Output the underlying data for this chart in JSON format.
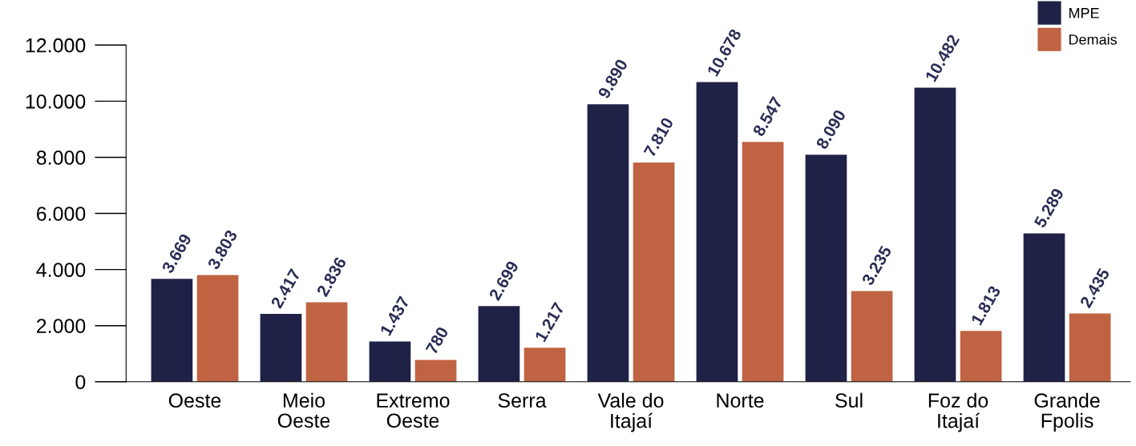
{
  "chart_data": {
    "type": "bar",
    "categories": [
      "Oeste",
      "Meio\nOeste",
      "Extremo\nOeste",
      "Serra",
      "Vale do\nItajaí",
      "Norte",
      "Sul",
      "Foz do\nItajaí",
      "Grande\nFpolis"
    ],
    "series": [
      {
        "name": "MPE",
        "color": "#1f2147",
        "values": [
          3669,
          2417,
          1437,
          2699,
          9890,
          10678,
          8090,
          10482,
          5289
        ],
        "value_labels": [
          "3.669",
          "2.417",
          "1.437",
          "2.699",
          "9.890",
          "10.678",
          "8.090",
          "10.482",
          "5.289"
        ]
      },
      {
        "name": "Demais",
        "color": "#c06343",
        "values": [
          3803,
          2836,
          780,
          1217,
          7810,
          8547,
          3235,
          1813,
          2435
        ],
        "value_labels": [
          "3.803",
          "2.836",
          "780",
          "1.217",
          "7.810",
          "8.547",
          "3.235",
          "1.813",
          "2.435"
        ]
      }
    ],
    "ylim": [
      0,
      12000
    ],
    "yticks": [
      0,
      {
        "value": 2000,
        "label": "2.000"
      },
      {
        "value": 4000,
        "label": "4.000"
      },
      {
        "value": 6000,
        "label": "6.000"
      },
      {
        "value": 8000,
        "label": "8.000"
      },
      {
        "value": 10000,
        "label": "10.000"
      },
      {
        "value": 12000,
        "label": "12.000"
      }
    ],
    "grid": false,
    "legend": "top right"
  }
}
